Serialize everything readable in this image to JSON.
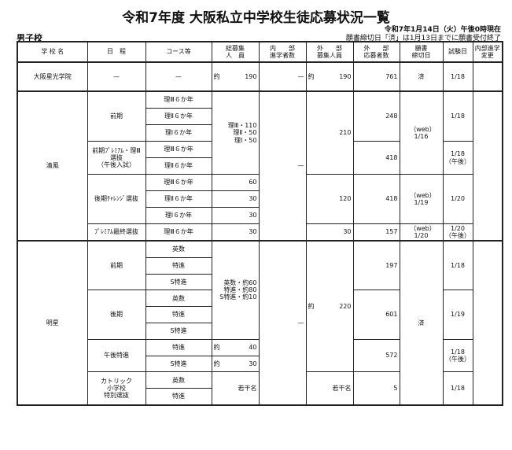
{
  "title": "令和7年度 大阪私立中学校生徒応募状況一覧",
  "as_of": "令和7年1月14日（火）午後0時現在",
  "note": "願書締切日「済」は1月13日までに願書受付終了",
  "category": "男子校",
  "headers": [
    "学 校 名",
    "日　程",
    "コース等",
    "総募集\n人　員",
    "内　　部\n進学者数",
    "外　　部\n募集人員",
    "外　　部\n応募者数",
    "願書\n締切日",
    "試験日",
    "内部進学\n変更"
  ],
  "osaka": {
    "name": "大阪星光学院",
    "schedule": "—",
    "course": "—",
    "total_prefix": "約",
    "total": "190",
    "internal": "—",
    "ext_prefix": "約",
    "ext": "190",
    "applicants": "761",
    "deadline": "済",
    "exam": "1/18"
  },
  "seifu": {
    "name": "清風",
    "schedules": [
      "前期",
      "前期ﾌﾟﾚﾐｱﾑ・理Ⅲ\n選抜\n（午後入試）",
      "後期ﾁｬﾚﾝｼﾞ選抜",
      "ﾌﾟﾚﾐｱﾑ最終選抜"
    ],
    "courses": [
      "理Ⅲ６か年",
      "理Ⅱ６か年",
      "理Ⅰ６か年",
      "理Ⅲ６か年",
      "理Ⅱ６か年",
      "理Ⅲ６か年",
      "理Ⅱ６か年",
      "理Ⅰ６か年",
      "理Ⅲ６か年"
    ],
    "totals": [
      "理Ⅲ・110\n理Ⅱ・50\n理Ⅰ・50",
      "60",
      "30",
      "30",
      "30"
    ],
    "internal": "—",
    "ext": [
      "210",
      "120",
      "30"
    ],
    "applicants": [
      "248",
      "418",
      "418",
      "157"
    ],
    "deadlines": [
      "（web）　1/16",
      "（web）　1/19",
      "（web）　1/20"
    ],
    "exams": [
      "1/18",
      "1/18\n（午後）",
      "1/20",
      "1/20\n（午後）"
    ]
  },
  "meisei": {
    "name": "明星",
    "schedules": [
      "前期",
      "後期",
      "午後特進",
      "カトリック\n小学校\n特別選抜"
    ],
    "courses": [
      "英数",
      "特進",
      "S特進",
      "英数",
      "特進",
      "S特進",
      "特進",
      "S特進",
      "英数",
      "特進"
    ],
    "totals": [
      "英数・約60\n特進・約80\nS特進・約10",
      "40",
      "30",
      "若干名"
    ],
    "total_prefix": "約",
    "internal": "—",
    "ext_prefix": "約",
    "ext": [
      "220",
      "若干名"
    ],
    "applicants": [
      "197",
      "601",
      "572",
      "5"
    ],
    "deadline": "済",
    "exams": [
      "1/18",
      "1/19",
      "1/18\n（午後）",
      "1/18"
    ]
  }
}
